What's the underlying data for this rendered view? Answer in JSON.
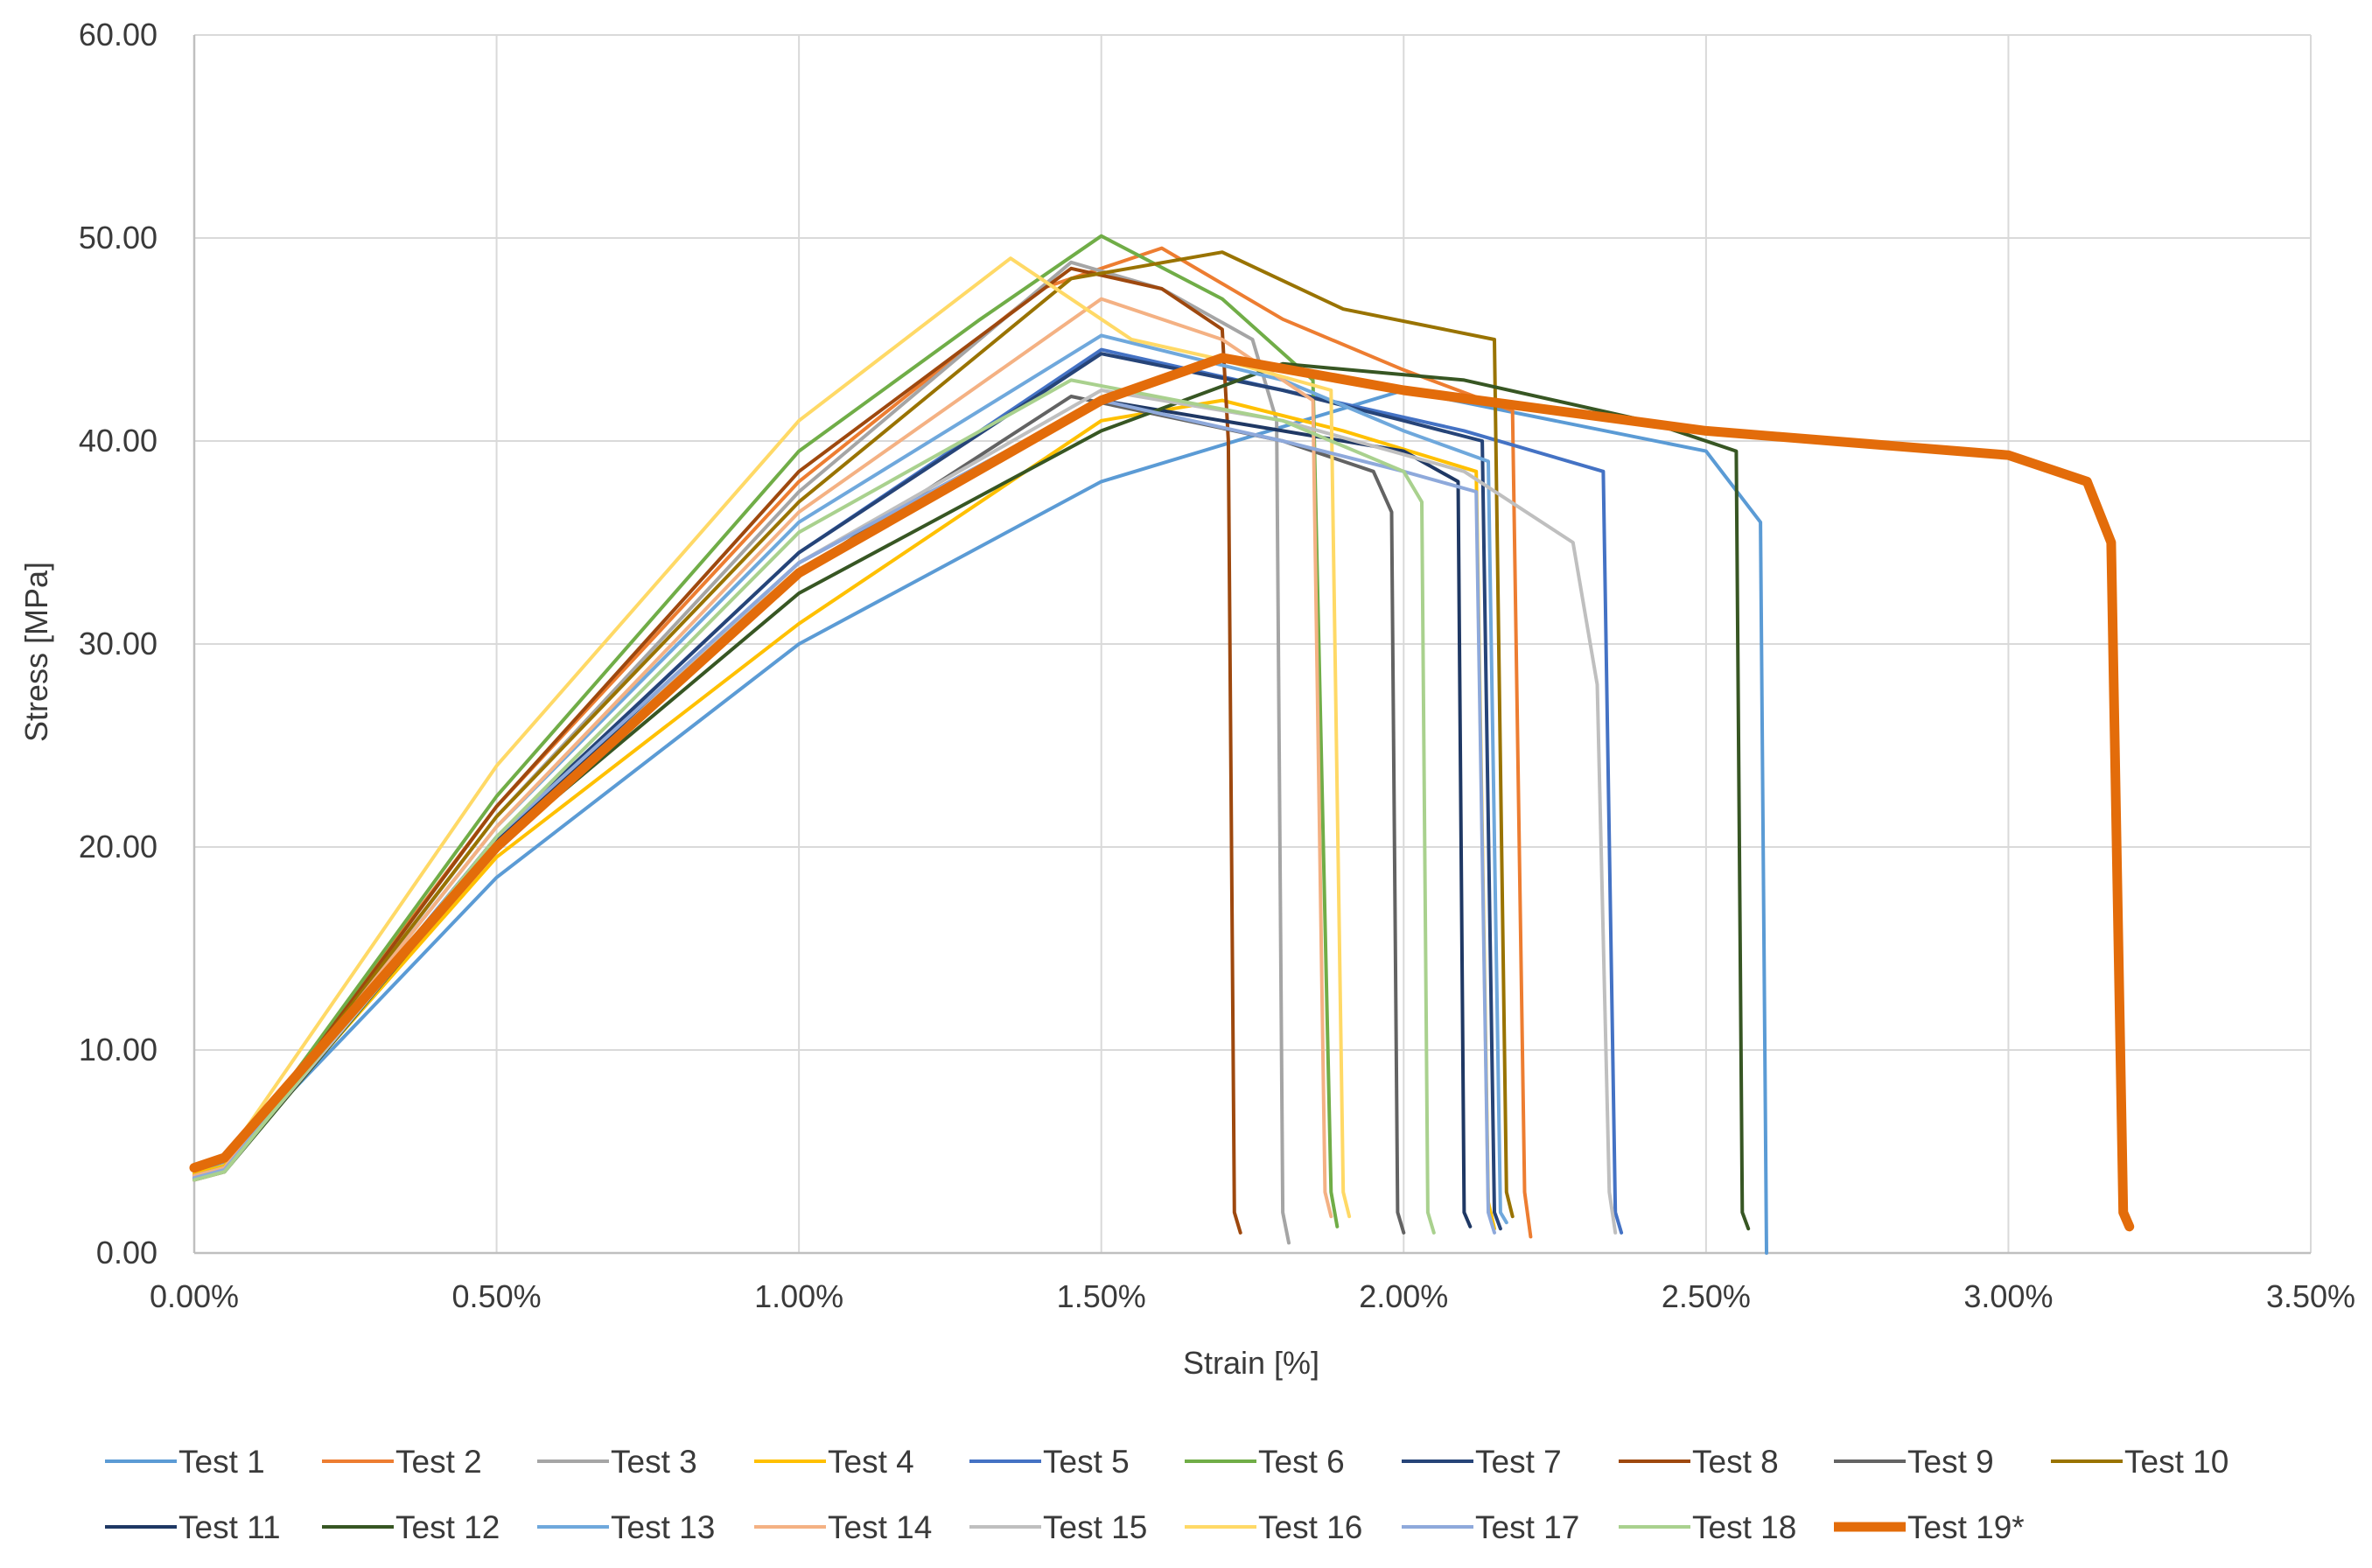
{
  "chart_data": {
    "type": "line",
    "title": "",
    "xlabel": "Strain [%]",
    "ylabel": "Stress [MPa]",
    "xlim": [
      0,
      3.5
    ],
    "ylim": [
      0,
      60
    ],
    "grid": true,
    "legend_position": "bottom",
    "x_ticks": [
      0,
      0.5,
      1.0,
      1.5,
      2.0,
      2.5,
      3.0,
      3.5
    ],
    "x_tick_labels": [
      "0.00%",
      "0.50%",
      "1.00%",
      "1.50%",
      "2.00%",
      "2.50%",
      "3.00%",
      "3.50%"
    ],
    "y_ticks": [
      0,
      10,
      20,
      30,
      40,
      50,
      60
    ],
    "y_tick_labels": [
      "0.00",
      "10.00",
      "20.00",
      "30.00",
      "40.00",
      "50.00",
      "60.00"
    ],
    "series": [
      {
        "name": "Test 1",
        "color": "#5B9BD5",
        "x": [
          0,
          0.05,
          0.5,
          1.0,
          1.5,
          2.0,
          2.5,
          2.59,
          2.6
        ],
        "y": [
          4.0,
          4.5,
          18.5,
          30.0,
          38.0,
          42.5,
          39.5,
          36.0,
          0
        ]
      },
      {
        "name": "Test 2",
        "color": "#ED7D31",
        "x": [
          0,
          0.05,
          0.5,
          1.0,
          1.4,
          1.6,
          1.8,
          2.0,
          2.18,
          2.2,
          2.21
        ],
        "y": [
          3.8,
          4.3,
          22.0,
          38.0,
          47.5,
          49.5,
          46.0,
          43.5,
          41.5,
          3.0,
          0.8
        ]
      },
      {
        "name": "Test 3",
        "color": "#A5A5A5",
        "x": [
          0,
          0.05,
          0.5,
          1.0,
          1.45,
          1.6,
          1.75,
          1.79,
          1.8,
          1.81
        ],
        "y": [
          3.6,
          4.0,
          21.5,
          37.5,
          48.8,
          47.5,
          45.0,
          41.0,
          2.0,
          0.5
        ]
      },
      {
        "name": "Test 4",
        "color": "#FFC000",
        "x": [
          0,
          0.05,
          0.5,
          1.0,
          1.5,
          1.7,
          1.9,
          2.12,
          2.14,
          2.15
        ],
        "y": [
          3.9,
          4.3,
          19.5,
          31.0,
          41.0,
          42.0,
          40.5,
          38.5,
          2.5,
          1.2
        ]
      },
      {
        "name": "Test 5",
        "color": "#4472C4",
        "x": [
          0,
          0.05,
          0.5,
          1.0,
          1.5,
          1.8,
          2.1,
          2.33,
          2.35,
          2.36
        ],
        "y": [
          3.8,
          4.2,
          20.5,
          34.5,
          44.5,
          42.5,
          40.5,
          38.5,
          2.0,
          1.0
        ]
      },
      {
        "name": "Test 6",
        "color": "#70AD47",
        "x": [
          0,
          0.05,
          0.5,
          1.0,
          1.3,
          1.5,
          1.7,
          1.85,
          1.88,
          1.89
        ],
        "y": [
          3.7,
          4.1,
          22.5,
          39.5,
          46.0,
          50.1,
          47.0,
          43.0,
          3.0,
          1.3
        ]
      },
      {
        "name": "Test 7",
        "color": "#264478",
        "x": [
          0,
          0.05,
          0.5,
          1.0,
          1.5,
          1.8,
          2.0,
          2.13,
          2.15,
          2.16
        ],
        "y": [
          3.7,
          4.1,
          20.5,
          34.5,
          44.3,
          42.5,
          41.0,
          40.0,
          2.0,
          1.2
        ]
      },
      {
        "name": "Test 8",
        "color": "#9E480E",
        "x": [
          0,
          0.05,
          0.5,
          1.0,
          1.45,
          1.6,
          1.7,
          1.71,
          1.72,
          1.73
        ],
        "y": [
          3.6,
          4.0,
          22.0,
          38.5,
          48.5,
          47.5,
          45.5,
          40.0,
          2.0,
          1.0
        ]
      },
      {
        "name": "Test 9",
        "color": "#636363",
        "x": [
          0,
          0.05,
          0.5,
          1.0,
          1.45,
          1.8,
          1.95,
          1.98,
          1.99,
          2.0
        ],
        "y": [
          3.7,
          4.1,
          20.0,
          33.5,
          42.2,
          40.0,
          38.5,
          36.5,
          2.0,
          1.0
        ]
      },
      {
        "name": "Test 10",
        "color": "#997300",
        "x": [
          0,
          0.05,
          0.5,
          1.0,
          1.45,
          1.7,
          1.9,
          2.15,
          2.17,
          2.18
        ],
        "y": [
          3.7,
          4.1,
          21.5,
          37.0,
          48.0,
          49.3,
          46.5,
          45.0,
          3.0,
          1.8
        ]
      },
      {
        "name": "Test 11",
        "color": "#1F3864",
        "x": [
          0,
          0.05,
          0.5,
          1.0,
          1.5,
          1.8,
          2.0,
          2.09,
          2.1,
          2.11
        ],
        "y": [
          3.7,
          4.1,
          20.3,
          34.0,
          42.0,
          40.5,
          39.5,
          38.0,
          2.0,
          1.3
        ]
      },
      {
        "name": "Test 12",
        "color": "#375623",
        "x": [
          0,
          0.05,
          0.5,
          1.0,
          1.5,
          1.8,
          2.1,
          2.4,
          2.55,
          2.56,
          2.57
        ],
        "y": [
          3.7,
          4.0,
          20.0,
          32.5,
          40.5,
          43.8,
          43.0,
          41.0,
          39.5,
          2.0,
          1.2
        ]
      },
      {
        "name": "Test 13",
        "color": "#6FA8DC",
        "x": [
          0,
          0.05,
          0.5,
          1.0,
          1.5,
          1.8,
          2.0,
          2.14,
          2.16,
          2.17
        ],
        "y": [
          3.8,
          4.2,
          21.0,
          36.0,
          45.2,
          43.0,
          40.5,
          39.0,
          2.0,
          1.5
        ]
      },
      {
        "name": "Test 14",
        "color": "#F4B183",
        "x": [
          0,
          0.05,
          0.5,
          1.0,
          1.5,
          1.7,
          1.85,
          1.87,
          1.88
        ],
        "y": [
          3.8,
          4.2,
          21.0,
          36.5,
          47.0,
          45.0,
          42.0,
          3.0,
          1.8
        ]
      },
      {
        "name": "Test 15",
        "color": "#BFBFBF",
        "x": [
          0,
          0.05,
          0.5,
          1.0,
          1.5,
          1.8,
          2.1,
          2.28,
          2.32,
          2.34,
          2.35
        ],
        "y": [
          3.7,
          4.1,
          20.0,
          34.0,
          42.5,
          41.0,
          38.5,
          35.0,
          28.0,
          3.0,
          1.0
        ]
      },
      {
        "name": "Test 16",
        "color": "#FFD966",
        "x": [
          0,
          0.05,
          0.5,
          1.0,
          1.35,
          1.55,
          1.7,
          1.88,
          1.9,
          1.91
        ],
        "y": [
          4.2,
          4.6,
          24.0,
          41.0,
          49.0,
          45.0,
          44.0,
          42.5,
          3.0,
          1.8
        ]
      },
      {
        "name": "Test 17",
        "color": "#8EA9DB",
        "x": [
          0,
          0.05,
          0.5,
          1.0,
          1.5,
          1.8,
          2.0,
          2.12,
          2.14,
          2.15
        ],
        "y": [
          3.7,
          4.1,
          20.5,
          34.0,
          42.0,
          40.0,
          38.5,
          37.5,
          2.0,
          1.0
        ]
      },
      {
        "name": "Test 18",
        "color": "#A9D18E",
        "x": [
          0,
          0.05,
          0.5,
          1.0,
          1.45,
          1.8,
          2.0,
          2.03,
          2.04,
          2.05
        ],
        "y": [
          3.6,
          4.0,
          20.5,
          35.5,
          43.0,
          41.0,
          38.5,
          37.0,
          2.0,
          1.0
        ]
      },
      {
        "name": "Test 19*",
        "color": "#E36C0A",
        "bold": true,
        "x": [
          0,
          0.05,
          0.5,
          1.0,
          1.5,
          1.7,
          2.0,
          2.5,
          3.0,
          3.13,
          3.17,
          3.19,
          3.2
        ],
        "y": [
          4.2,
          4.7,
          20.0,
          33.5,
          42.0,
          44.1,
          42.5,
          40.5,
          39.3,
          38.0,
          35.0,
          2.0,
          1.3
        ]
      }
    ]
  }
}
